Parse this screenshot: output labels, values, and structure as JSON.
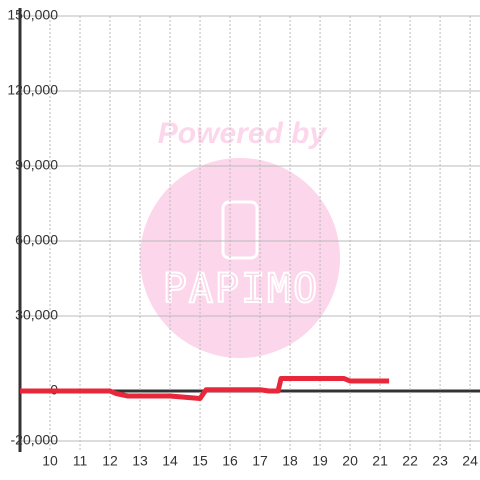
{
  "chart_data": {
    "type": "line",
    "watermark": {
      "line1": "Powered by",
      "line2": "PAPIMO"
    },
    "series": [
      {
        "color": "#e8283a",
        "x": [
          9,
          12,
          12.2,
          12.6,
          14,
          14.5,
          15,
          15.2,
          16,
          17,
          17.3,
          17.6,
          17.7,
          19.8,
          20,
          21.3
        ],
        "values": [
          0,
          0,
          -1000,
          -2000,
          -2000,
          -2500,
          -3000,
          500,
          500,
          500,
          0,
          0,
          5000,
          5000,
          4000,
          4000
        ]
      }
    ],
    "xlim": [
      9,
      24.33
    ],
    "xticks": [
      10,
      11,
      12,
      13,
      14,
      15,
      16,
      17,
      18,
      19,
      20,
      21,
      22,
      23,
      24
    ],
    "ylim": [
      -20000,
      150000
    ],
    "yticks": [
      {
        "value": -20000,
        "label": "-20,000"
      },
      0,
      {
        "value": 30000,
        "label": "30,000"
      },
      {
        "value": 60000,
        "label": "60,000"
      },
      {
        "value": 90000,
        "label": "90,000"
      },
      {
        "value": 120000,
        "label": "120,000"
      },
      {
        "value": 150000,
        "label": "150,000"
      }
    ],
    "grid": true
  }
}
